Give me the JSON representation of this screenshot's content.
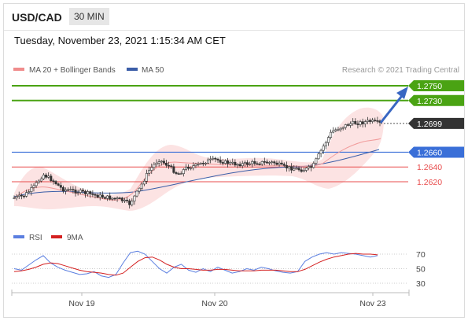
{
  "header": {
    "symbol": "USD/CAD",
    "timeframe": "30 MIN"
  },
  "datetime": "Tuesday, November 23, 2021 1:15:34 AM CET",
  "credit": "Research © 2021 Trading Central",
  "colors": {
    "resistance": "#4aa313",
    "support": "#e84c4c",
    "pivot": "#3a6fd8",
    "current": "#333333",
    "ma50": "#3b5ea8",
    "bollinger": "#f6b7b7",
    "rsi": "#5b7fe0",
    "rsi_ma": "#d42020",
    "candle": "#333333"
  },
  "chart_data": [
    {
      "type": "candlestick",
      "legend": [
        {
          "name": "MA 20 + Bollinger Bands",
          "color": "#f08c8c"
        },
        {
          "name": "MA 50",
          "color": "#3b5ea8"
        }
      ],
      "price_levels": [
        {
          "value": 1.275,
          "label": "1.2750",
          "role": "resistance"
        },
        {
          "value": 1.273,
          "label": "1.2730",
          "role": "resistance"
        },
        {
          "value": 1.2699,
          "label": "1.2699",
          "role": "current"
        },
        {
          "value": 1.266,
          "label": "1.2660",
          "role": "pivot"
        },
        {
          "value": 1.264,
          "label": "1.2640",
          "role": "support"
        },
        {
          "value": 1.262,
          "label": "1.2620",
          "role": "support"
        }
      ],
      "arrow": {
        "from": 1.2699,
        "to": 1.275,
        "direction": "up"
      },
      "x_ticks": [
        "Nov 19",
        "Nov 20",
        "Nov 23"
      ],
      "close_path": [
        1.2598,
        1.2601,
        1.2612,
        1.263,
        1.2622,
        1.261,
        1.2608,
        1.2606,
        1.2603,
        1.26,
        1.2598,
        1.2596,
        1.259,
        1.261,
        1.2635,
        1.265,
        1.2642,
        1.263,
        1.264,
        1.2642,
        1.2648,
        1.265,
        1.2646,
        1.2644,
        1.2644,
        1.2646,
        1.2646,
        1.2646,
        1.264,
        1.2638,
        1.2636,
        1.264,
        1.2665,
        1.2688,
        1.2694,
        1.2699,
        1.27,
        1.2702,
        1.2699
      ]
    },
    {
      "type": "line",
      "legend": [
        {
          "name": "RSI",
          "color": "#5b7fe0"
        },
        {
          "name": "9MA",
          "color": "#d42020"
        }
      ],
      "y_ticks": [
        70,
        50,
        30
      ],
      "ylim": [
        20,
        80
      ],
      "series": [
        {
          "name": "RSI",
          "values": [
            50,
            48,
            55,
            62,
            68,
            58,
            52,
            48,
            45,
            42,
            43,
            46,
            40,
            38,
            42,
            58,
            72,
            74,
            70,
            60,
            50,
            44,
            52,
            56,
            48,
            45,
            50,
            46,
            52,
            48,
            44,
            46,
            50,
            48,
            52,
            50,
            47,
            45,
            44,
            46,
            60,
            66,
            70,
            72,
            70,
            72,
            71,
            70,
            68,
            66,
            68
          ]
        },
        {
          "name": "9MA",
          "values": [
            46,
            47,
            49,
            52,
            56,
            58,
            57,
            54,
            51,
            48,
            46,
            45,
            44,
            42,
            41,
            44,
            52,
            60,
            65,
            66,
            62,
            56,
            52,
            50,
            50,
            49,
            48,
            48,
            49,
            49,
            48,
            47,
            47,
            47,
            48,
            48,
            48,
            47,
            46,
            46,
            49,
            54,
            59,
            63,
            66,
            68,
            70,
            71,
            70,
            70,
            69
          ]
        }
      ]
    }
  ]
}
